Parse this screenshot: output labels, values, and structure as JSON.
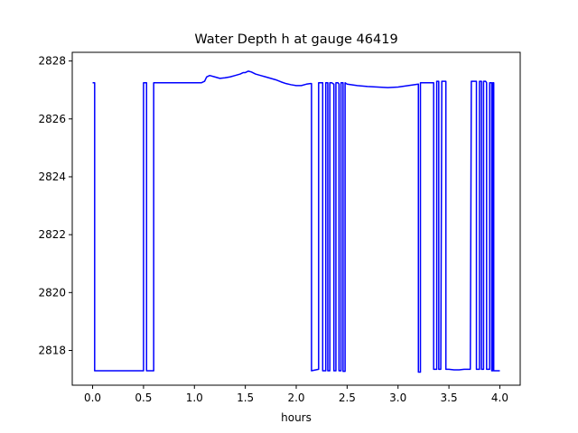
{
  "chart_data": {
    "type": "line",
    "title": "Water Depth h at gauge 46419",
    "xlabel": "hours",
    "ylabel": "",
    "xlim": [
      -0.2,
      4.2
    ],
    "ylim": [
      2816.8,
      2828.3
    ],
    "xticks": [
      0.0,
      0.5,
      1.0,
      1.5,
      2.0,
      2.5,
      3.0,
      3.5,
      4.0
    ],
    "xtick_labels": [
      "0.0",
      "0.5",
      "1.0",
      "1.5",
      "2.0",
      "2.5",
      "3.0",
      "3.5",
      "4.0"
    ],
    "yticks": [
      2818,
      2820,
      2822,
      2824,
      2826,
      2828
    ],
    "ytick_labels": [
      "2818",
      "2820",
      "2822",
      "2824",
      "2826",
      "2828"
    ],
    "grid": false,
    "series": [
      {
        "color": "#0000ff",
        "x": [
          0.0,
          0.02,
          0.02,
          0.5,
          0.5,
          0.51,
          0.52,
          0.53,
          0.53,
          0.59,
          0.6,
          0.6,
          1.07,
          1.1,
          1.12,
          1.15,
          1.2,
          1.25,
          1.3,
          1.35,
          1.4,
          1.45,
          1.48,
          1.5,
          1.53,
          1.56,
          1.6,
          1.65,
          1.7,
          1.75,
          1.8,
          1.85,
          1.9,
          1.95,
          2.0,
          2.05,
          2.1,
          2.14,
          2.15,
          2.15,
          2.22,
          2.22,
          2.23,
          2.24,
          2.25,
          2.26,
          2.26,
          2.29,
          2.29,
          2.3,
          2.31,
          2.31,
          2.33,
          2.33,
          2.35,
          2.36,
          2.37,
          2.37,
          2.39,
          2.39,
          2.41,
          2.42,
          2.42,
          2.44,
          2.44,
          2.46,
          2.46,
          2.48,
          2.48,
          2.5,
          2.6,
          2.7,
          2.8,
          2.9,
          3.0,
          3.1,
          3.2,
          3.2,
          3.22,
          3.22,
          3.24,
          3.25,
          3.3,
          3.35,
          3.35,
          3.38,
          3.38,
          3.39,
          3.4,
          3.4,
          3.42,
          3.43,
          3.44,
          3.45,
          3.46,
          3.47,
          3.47,
          3.5,
          3.55,
          3.6,
          3.65,
          3.71,
          3.72,
          3.77,
          3.77,
          3.8,
          3.8,
          3.82,
          3.82,
          3.84,
          3.84,
          3.86,
          3.87,
          3.87,
          3.9,
          3.9,
          3.92,
          3.92,
          3.93,
          3.93,
          3.94,
          3.94,
          4.0
        ],
        "y": [
          2827.25,
          2827.25,
          2817.3,
          2817.3,
          2827.25,
          2827.25,
          2827.25,
          2827.25,
          2817.3,
          2817.3,
          2817.3,
          2827.25,
          2827.25,
          2827.3,
          2827.45,
          2827.5,
          2827.45,
          2827.4,
          2827.42,
          2827.45,
          2827.5,
          2827.55,
          2827.6,
          2827.6,
          2827.65,
          2827.62,
          2827.55,
          2827.5,
          2827.45,
          2827.4,
          2827.35,
          2827.28,
          2827.22,
          2827.18,
          2827.15,
          2827.15,
          2827.2,
          2827.22,
          2827.22,
          2817.3,
          2817.35,
          2827.25,
          2827.25,
          2827.25,
          2827.25,
          2827.25,
          2817.3,
          2817.3,
          2827.25,
          2827.25,
          2827.25,
          2817.3,
          2817.3,
          2827.25,
          2827.25,
          2827.22,
          2827.2,
          2817.3,
          2817.3,
          2827.25,
          2827.25,
          2827.2,
          2817.3,
          2817.3,
          2827.25,
          2827.25,
          2817.28,
          2817.28,
          2827.25,
          2827.2,
          2827.15,
          2827.12,
          2827.1,
          2827.08,
          2827.1,
          2827.15,
          2827.2,
          2817.25,
          2817.25,
          2827.25,
          2827.25,
          2827.25,
          2827.25,
          2827.25,
          2817.35,
          2817.35,
          2827.3,
          2827.3,
          2827.3,
          2817.35,
          2817.35,
          2827.3,
          2827.3,
          2827.3,
          2827.3,
          2827.3,
          2817.35,
          2817.35,
          2817.33,
          2817.33,
          2817.35,
          2817.35,
          2827.3,
          2827.3,
          2817.35,
          2817.35,
          2827.3,
          2827.3,
          2817.35,
          2817.35,
          2827.3,
          2827.3,
          2827.25,
          2817.35,
          2817.35,
          2827.25,
          2827.25,
          2817.3,
          2817.3,
          2827.25,
          2827.25,
          2817.3,
          2817.3
        ]
      }
    ]
  }
}
